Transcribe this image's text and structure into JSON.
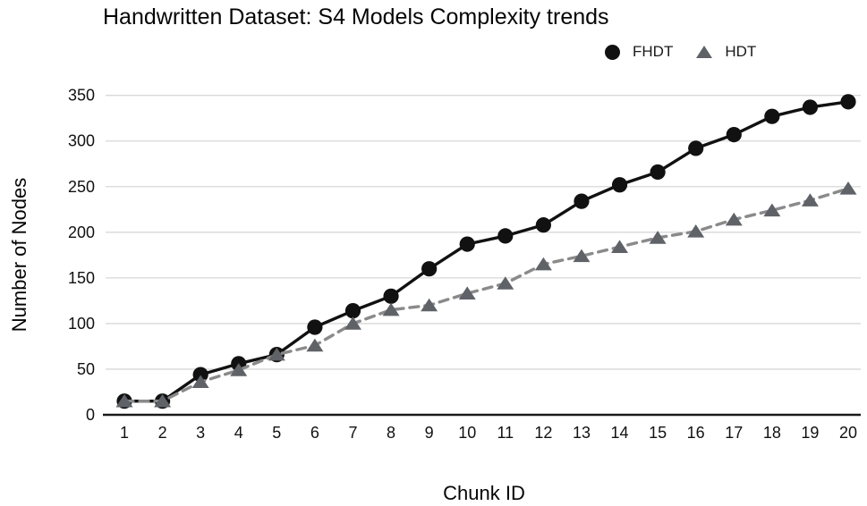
{
  "title": "Handwritten Dataset: S4 Models Complexity trends",
  "legend": {
    "items": [
      {
        "label": "FHDT",
        "marker": "circle-icon"
      },
      {
        "label": "HDT",
        "marker": "triangle-icon"
      }
    ],
    "position": "top-right"
  },
  "chart_data": {
    "type": "line",
    "title": "Handwritten Dataset: S4 Models Complexity trends",
    "xlabel": "Chunk ID",
    "ylabel": "Number of Nodes",
    "x": [
      1,
      2,
      3,
      4,
      5,
      6,
      7,
      8,
      9,
      10,
      11,
      12,
      13,
      14,
      15,
      16,
      17,
      18,
      19,
      20
    ],
    "xlim": [
      1,
      20
    ],
    "ylim": [
      0,
      350
    ],
    "yticks": [
      0,
      50,
      100,
      150,
      200,
      250,
      300,
      350
    ],
    "grid": true,
    "legend_position": "top-right",
    "series": [
      {
        "name": "FHDT",
        "marker": "circle",
        "line_style": "solid",
        "color": "#111111",
        "marker_color": "#111111",
        "values": [
          15,
          15,
          44,
          56,
          66,
          96,
          114,
          130,
          160,
          187,
          196,
          208,
          234,
          252,
          266,
          292,
          307,
          327,
          337,
          343
        ]
      },
      {
        "name": "HDT",
        "marker": "triangle",
        "line_style": "dashed",
        "color": "#8a8a8a",
        "marker_color": "#5f6368",
        "values": [
          15,
          15,
          36,
          49,
          66,
          76,
          100,
          115,
          120,
          133,
          144,
          165,
          174,
          184,
          194,
          201,
          214,
          224,
          235,
          248
        ]
      }
    ]
  },
  "colors": {
    "background": "#ffffff",
    "grid": "#d8d8d8",
    "axis": "#1a1a1a",
    "text": "#111111"
  }
}
